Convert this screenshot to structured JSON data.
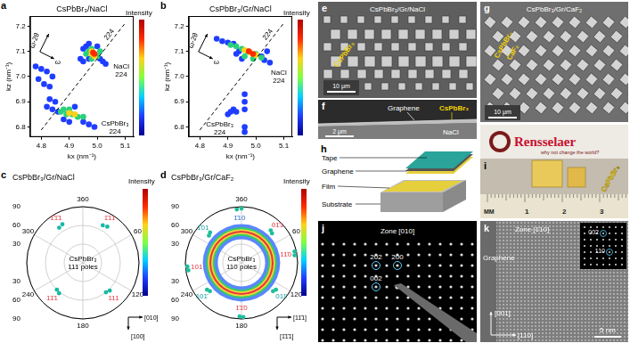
{
  "chart_data": [
    {
      "panel": "a",
      "type": "scatter",
      "title": "CsPbBr₃/NaCl",
      "x_label": "kx (nm⁻¹)",
      "y_label": "kz (nm⁻¹)",
      "xlim": [
        4.76,
        5.13
      ],
      "xticks": [
        4.8,
        4.9,
        {
          "value": 5,
          "label": "5.0"
        },
        5.1
      ],
      "ylim": [
        6.76,
        7.24
      ],
      "yticks": [
        6.8,
        6.9,
        {
          "value": 7,
          "label": "7.0"
        },
        7.1,
        7.2
      ],
      "grid": false,
      "series": [
        {
          "color": "#1f3dff",
          "values": [
            [
              4.94,
              7.07
            ],
            [
              4.95,
              7.06
            ],
            [
              4.95,
              7.11
            ],
            [
              4.96,
              7.12
            ],
            [
              4.97,
              7.13
            ],
            [
              5.01,
              7.07
            ],
            [
              5.02,
              7.06
            ],
            [
              5.03,
              7.05
            ],
            [
              4.97,
              7.07
            ],
            [
              5.0,
              7.12
            ],
            [
              4.78,
              7.04
            ],
            [
              4.8,
              7.03
            ],
            [
              4.82,
              7.02
            ],
            [
              4.84,
              7.0
            ],
            [
              4.79,
              6.99
            ],
            [
              4.81,
              6.97
            ],
            [
              4.83,
              6.96
            ],
            [
              4.82,
              6.88
            ],
            [
              4.84,
              6.87
            ],
            [
              4.86,
              6.86
            ],
            [
              4.88,
              6.83
            ],
            [
              4.92,
              6.88
            ],
            [
              4.85,
              6.9
            ],
            [
              4.95,
              6.82
            ],
            [
              4.97,
              6.81
            ],
            [
              4.99,
              6.8
            ],
            [
              4.9,
              6.82
            ],
            [
              4.83,
              6.91
            ]
          ]
        },
        {
          "color": "#29d17a",
          "values": [
            [
              4.96,
              7.09
            ],
            [
              4.97,
              7.1
            ],
            [
              5.0,
              7.08
            ],
            [
              5.01,
              7.1
            ],
            [
              4.98,
              7.11
            ],
            [
              4.98,
              7.07
            ],
            [
              4.87,
              6.86
            ],
            [
              4.89,
              6.85
            ],
            [
              4.91,
              6.85
            ],
            [
              4.93,
              6.84
            ],
            [
              4.95,
              6.84
            ],
            [
              4.9,
              6.87
            ],
            [
              4.88,
              6.87
            ]
          ]
        },
        {
          "color": "#ffd21a",
          "values": [
            [
              4.98,
              7.09
            ],
            [
              4.99,
              7.08
            ],
            [
              4.98,
              7.1
            ],
            [
              4.9,
              6.855
            ],
            [
              4.92,
              6.85
            ]
          ]
        },
        {
          "color": "#ff2a00",
          "values": [
            [
              4.985,
              7.095
            ],
            [
              4.99,
              7.09
            ]
          ]
        },
        {
          "type": "line",
          "line_style": "dashed",
          "color": "#000000",
          "label": "224",
          "values": [
            [
              4.8,
              6.788
            ],
            [
              5.1,
              7.212
            ]
          ]
        }
      ],
      "annotations": [
        [
          "NaCl",
          "224"
        ],
        [
          "CsPbBr₃",
          "224"
        ]
      ],
      "scan_labels": [
        "ω-2θ",
        "ω"
      ],
      "colorbar": {
        "label": "Intensity"
      }
    },
    {
      "panel": "b",
      "type": "scatter",
      "title": "CsPbBr₃/Gr/NaCl",
      "x_label": "kx (nm⁻¹)",
      "y_label": "kz (nm⁻¹)",
      "xlim": [
        4.76,
        5.13
      ],
      "xticks": [
        4.8,
        4.9,
        {
          "value": 5,
          "label": "5.0"
        },
        5.1
      ],
      "ylim": [
        6.76,
        7.24
      ],
      "yticks": [
        6.8,
        6.9,
        {
          "value": 7,
          "label": "7.0"
        },
        7.1,
        7.2
      ],
      "grid": false,
      "series": [
        {
          "color": "#1f3dff",
          "values": [
            [
              4.86,
              7.15
            ],
            [
              4.88,
              7.14
            ],
            [
              4.9,
              7.135
            ],
            [
              4.92,
              7.13
            ],
            [
              4.94,
              7.1
            ],
            [
              4.93,
              7.09
            ],
            [
              4.95,
              7.07
            ],
            [
              5.03,
              7.065
            ],
            [
              5.05,
              7.055
            ],
            [
              5.02,
              7.08
            ],
            [
              5.04,
              7.1
            ],
            [
              4.96,
              6.93
            ],
            [
              4.96,
              6.9
            ],
            [
              4.96,
              6.87
            ],
            [
              4.96,
              6.8
            ],
            [
              4.96,
              6.78
            ],
            [
              4.91,
              6.86
            ],
            [
              4.93,
              6.86
            ],
            [
              4.92,
              6.87
            ],
            [
              4.9,
              6.85
            ]
          ]
        },
        {
          "color": "#29d17a",
          "values": [
            [
              4.91,
              7.125
            ],
            [
              4.93,
              7.12
            ],
            [
              4.95,
              7.11
            ],
            [
              4.97,
              7.1
            ],
            [
              5.0,
              7.09
            ],
            [
              5.02,
              7.075
            ],
            [
              4.96,
              7.08
            ],
            [
              4.99,
              7.07
            ]
          ]
        },
        {
          "color": "#ffd21a",
          "values": [
            [
              4.96,
              7.105
            ],
            [
              4.98,
              7.095
            ],
            [
              5.0,
              7.085
            ]
          ]
        },
        {
          "color": "#ff2a00",
          "values": [
            [
              4.975,
              7.1
            ],
            [
              4.99,
              7.09
            ]
          ]
        },
        {
          "type": "line",
          "line_style": "dashed",
          "color": "#000000",
          "label": "224",
          "values": [
            [
              4.8,
              6.788
            ],
            [
              5.1,
              7.212
            ]
          ]
        }
      ],
      "annotations": [
        [
          "NaCl",
          "224"
        ],
        [
          "CsPbBr₃",
          "224"
        ]
      ],
      "scan_labels": [
        "ω-2θ",
        "ω"
      ],
      "colorbar": {
        "label": "Intensity"
      }
    },
    {
      "panel": "c",
      "type": "pole_figure",
      "title": "CsPbBr₃/Gr/NaCl",
      "center_text": [
        "CsPbBr₃",
        "111 poles"
      ],
      "rlim": [
        0,
        90
      ],
      "rticks": [
        30,
        60,
        90
      ],
      "angle_ticks": [
        60,
        120,
        180,
        240,
        300,
        360
      ],
      "grid": true,
      "color": "#17b9a6",
      "poles": [
        {
          "label": "1̄1̄1",
          "color": "#e8383d",
          "points": [
            [
              326,
              68
            ],
            [
              332,
              70
            ]
          ]
        },
        {
          "label": "1̄11",
          "color": "#e8383d",
          "points": [
            [
              28,
              68
            ],
            [
              34,
              70
            ]
          ]
        },
        {
          "label": "11̄1",
          "color": "#e8383d",
          "points": [
            [
              218,
              62
            ],
            [
              224,
              60
            ]
          ]
        },
        {
          "label": "111",
          "color": "#e8383d",
          "points": [
            [
              136,
              62
            ],
            [
              142,
              60
            ]
          ]
        }
      ],
      "directions": [
        "[010]",
        "[100]"
      ],
      "colorbar": {
        "label": "Intensity"
      }
    },
    {
      "panel": "d",
      "type": "pole_figure",
      "title": "CsPbBr₃/Gr/CaF₂",
      "center_text": [
        "CsPbBr₃",
        "110 poles"
      ],
      "rlim": [
        0,
        90
      ],
      "rticks": [
        30,
        60,
        90
      ],
      "angle_ticks": [
        60,
        120,
        180,
        240,
        300,
        360
      ],
      "grid": true,
      "color": "#1fbf9c",
      "rings": [
        {
          "psi": [
            38,
            62
          ],
          "color": "#5b86ff"
        },
        {
          "psi": [
            43,
            57
          ],
          "color": "#36c96a"
        },
        {
          "psi": [
            46,
            54
          ],
          "color": "#f2d43c"
        },
        {
          "psi": [
            48.5,
            51.5
          ],
          "color": "#e8383d"
        }
      ],
      "poles": [
        {
          "label": "1̄10",
          "color": "#2f6fd6",
          "points": [
            [
              355,
              86
            ],
            [
              0,
              87
            ]
          ]
        },
        {
          "label": "1̄01",
          "color": "#1a9e9e",
          "points": [
            [
              310,
              68
            ],
            [
              314,
              70
            ]
          ]
        },
        {
          "label": "01̄1",
          "color": "#e8383d",
          "points": [
            [
              42,
              70
            ],
            [
              46,
              68
            ]
          ]
        },
        {
          "label": "11̄0",
          "color": "#e8383d",
          "points": [
            [
              78,
              87
            ],
            [
              82,
              86
            ]
          ]
        },
        {
          "label": "011̄",
          "color": "#1a9e9e",
          "points": [
            [
              128,
              70
            ],
            [
              132,
              68
            ]
          ]
        },
        {
          "label": "1̄1̄0",
          "color": "#e8383d",
          "points": [
            [
              178,
              87
            ],
            [
              182,
              86
            ]
          ]
        },
        {
          "label": "101̄",
          "color": "#1a9e9e",
          "points": [
            [
              228,
              68
            ],
            [
              232,
              70
            ]
          ]
        },
        {
          "label": "101",
          "color": "#e8383d",
          "points": [
            [
              262,
              86
            ],
            [
              266,
              87
            ]
          ]
        }
      ],
      "directions": [
        "[11̄1]",
        "[1̄1̄1]"
      ],
      "colorbar": {
        "label": "Intensity"
      }
    }
  ],
  "panels": [
    {
      "letter": "e",
      "title": "CsPbBr₃/Gr/NaCl",
      "annotations": [
        "CsPbBr₃"
      ],
      "scale_bar": "10 μm"
    },
    {
      "letter": "f",
      "labels": [
        "Graphene",
        "CsPbBr₃",
        "NaCl"
      ],
      "scale_bar": "2 μm"
    },
    {
      "letter": "g",
      "title": "CsPbBr₃/Gr/CaF₂",
      "annotations": [
        "CsPbBr₃",
        "CaF₂"
      ],
      "scale_bar": "10 μm"
    },
    {
      "letter": "h",
      "labels": [
        "Tape",
        "Graphene",
        "Film",
        "Substrate"
      ]
    },
    {
      "letter": "i",
      "logo": "Rensselaer",
      "tagline": "why not change the world?",
      "annotations": [
        "CsPbBr₃"
      ],
      "ruler": [
        "MM",
        "1",
        "2",
        "3"
      ]
    },
    {
      "letter": "j",
      "zone": "Zone [010]",
      "spots": [
        "202",
        "200",
        "002"
      ]
    },
    {
      "letter": "k",
      "zone": "Zone [1̄10]",
      "labels": [
        "Graphene"
      ],
      "directions": [
        "[001]",
        "[110]"
      ],
      "inset_spots": [
        "002",
        "110"
      ],
      "scale_bar": "5 nm"
    }
  ]
}
